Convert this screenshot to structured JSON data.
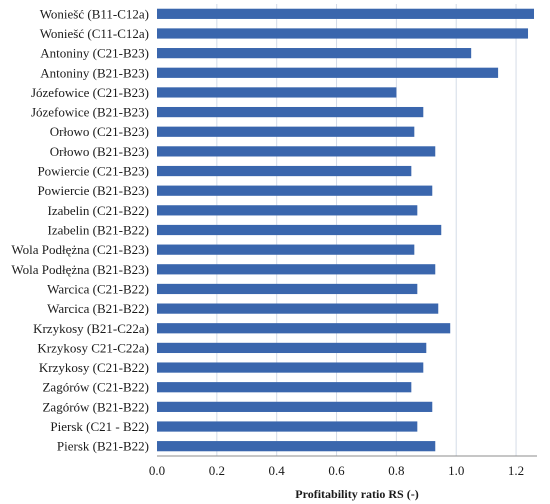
{
  "chart_data": {
    "type": "bar",
    "orientation": "horizontal",
    "title": "",
    "xlabel": "Profitability ratio RS (-)",
    "ylabel": "",
    "xlim": [
      0,
      1.27
    ],
    "x_ticks": [
      "0.0",
      "0.2",
      "0.4",
      "0.6",
      "0.8",
      "1.0",
      "1.2"
    ],
    "grid": "vertical",
    "legend": "none",
    "bar_color": "#3a66ad",
    "categories": [
      "Woniešć (B11-C12a)",
      "Woniešć (C11-C12a)",
      "Antoniny (C21-B23)",
      "Antoniny (B21-B23)",
      "Józefowice (C21-B23)",
      "Józefowice (B21-B23)",
      "Orłowo (C21-B23)",
      "Orłowo (B21-B23)",
      "Powiercie (C21-B23)",
      "Powiercie (B21-B23)",
      "Izabelin (C21-B22)",
      "Izabelin (B21-B22)",
      "Wola Podłężna (C21-B23)",
      "Wola Podłężna (B21-B23)",
      "Warcica (C21-B22)",
      "Warcica (B21-B22)",
      "Krzykosy (B21-C22a)",
      "Krzykosy C21-C22a)",
      "Krzykosy (C21-B22)",
      "Zagórów (C21-B22)",
      "Zagórów (B21-B22)",
      "Piersk (C21 - B22)",
      "Piersk (B21-B22)"
    ],
    "values": [
      1.26,
      1.24,
      1.05,
      1.14,
      0.8,
      0.89,
      0.86,
      0.93,
      0.85,
      0.92,
      0.87,
      0.95,
      0.86,
      0.93,
      0.87,
      0.94,
      0.98,
      0.9,
      0.89,
      0.85,
      0.92,
      0.87,
      0.93
    ]
  }
}
